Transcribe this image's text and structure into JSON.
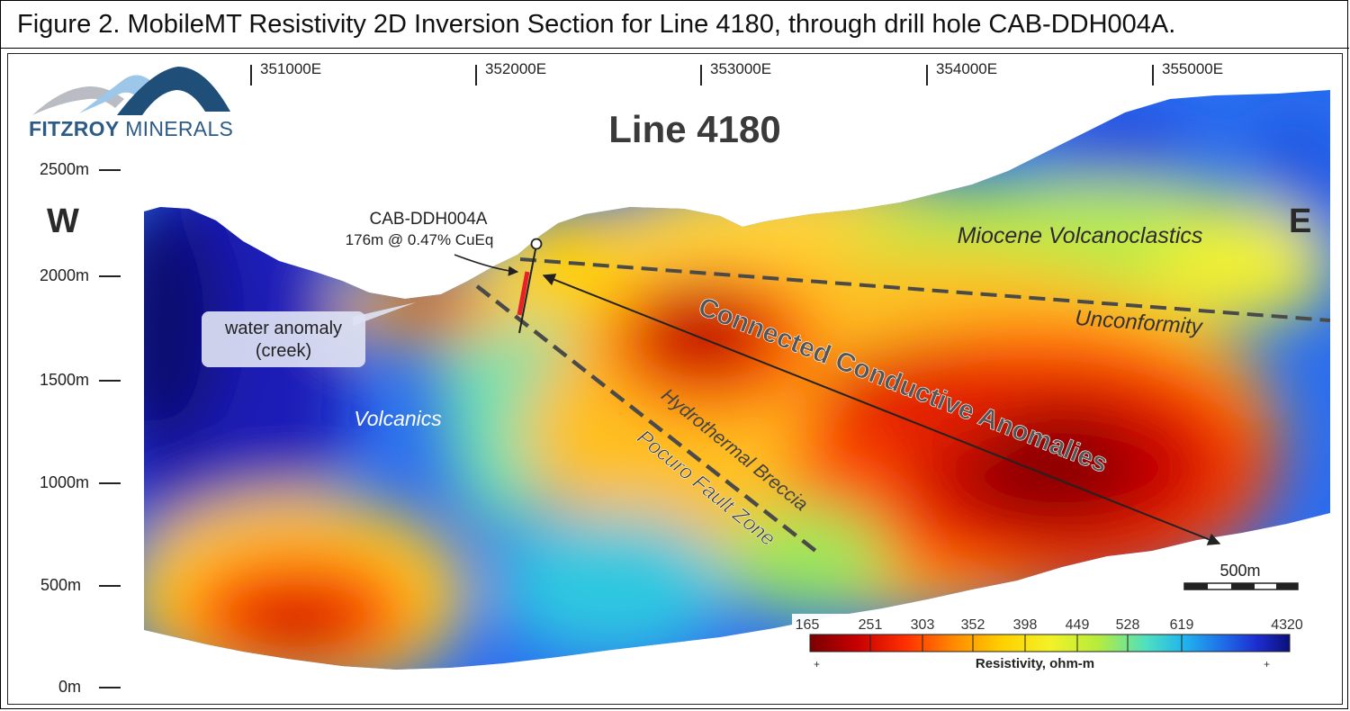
{
  "figure_caption": "Figure 2. MobileMT Resistivity 2D Inversion Section for Line 4180, through drill hole CAB-DDH004A.",
  "logo": {
    "word1": "FITZROY",
    "word2": "MINERALS"
  },
  "section_title": "Line 4180",
  "eastings": [
    "351000E",
    "352000E",
    "353000E",
    "354000E",
    "355000E"
  ],
  "elevations": [
    "2500m",
    "2000m",
    "1500m",
    "1000m",
    "500m",
    "0m"
  ],
  "direction_west": "W",
  "direction_east": "E",
  "drill_hole": {
    "name": "CAB-DDH004A",
    "intercept": "176m @ 0.47% CuEq"
  },
  "labels": {
    "water_anomaly_line1": "water anomaly",
    "water_anomaly_line2": "(creek)",
    "volcanics": "Volcanics",
    "miocene": "Miocene Volcanoclastics",
    "unconformity": "Unconformity",
    "conductive": "Connected Conductive Anomalies",
    "breccia": "Hydrothermal Breccia",
    "fault": "Pocuro Fault Zone"
  },
  "scale_bar": "500m",
  "colorbar": {
    "ticks": [
      "165",
      "251",
      "303",
      "352",
      "398",
      "449",
      "528",
      "619",
      "4320"
    ],
    "title": "Resistivity, ohm-m",
    "colors": [
      "#7a0000",
      "#c80000",
      "#ff3000",
      "#ff8a00",
      "#ffd000",
      "#f2f227",
      "#b6ec3c",
      "#4fe0c0",
      "#20b4ee",
      "#1f6ee8",
      "#1d2ed0",
      "#0b0f7a"
    ]
  }
}
